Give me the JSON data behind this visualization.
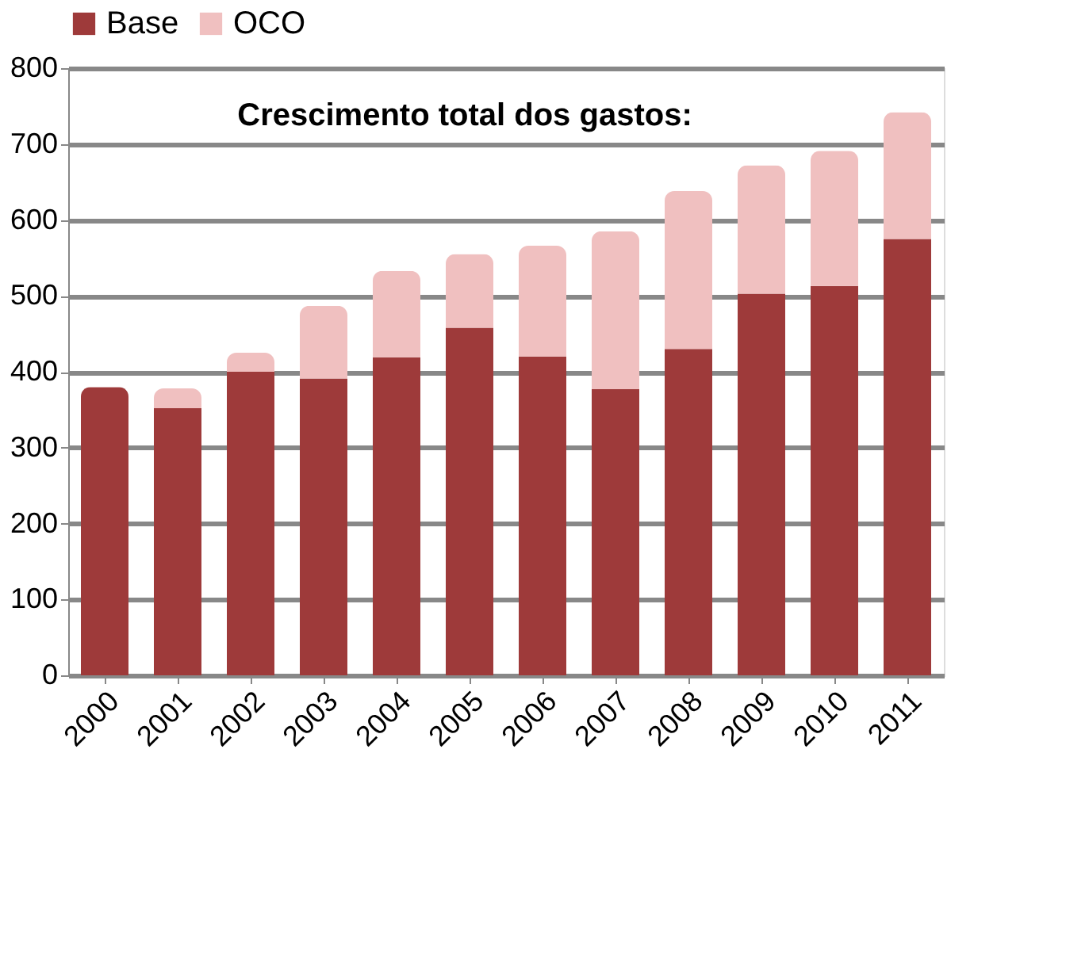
{
  "chart_data": {
    "type": "bar",
    "stacked": true,
    "categories": [
      "2000",
      "2001",
      "2002",
      "2003",
      "2004",
      "2005",
      "2006",
      "2007",
      "2008",
      "2009",
      "2010",
      "2011"
    ],
    "series": [
      {
        "name": "Base",
        "color": "#9e3a3a",
        "values": [
          380,
          352,
          400,
          391,
          419,
          458,
          420,
          377,
          430,
          503,
          513,
          575
        ]
      },
      {
        "name": "OCO",
        "color": "#f0c0c0",
        "values": [
          0,
          26,
          25,
          96,
          114,
          97,
          146,
          208,
          208,
          169,
          178,
          167
        ]
      }
    ],
    "annotations": [
      "Crescimento total dos gastos:"
    ],
    "ylim": [
      0,
      800
    ],
    "yticks": [
      0,
      100,
      200,
      300,
      400,
      500,
      600,
      700,
      800
    ],
    "grid": "y",
    "legend": "top"
  }
}
